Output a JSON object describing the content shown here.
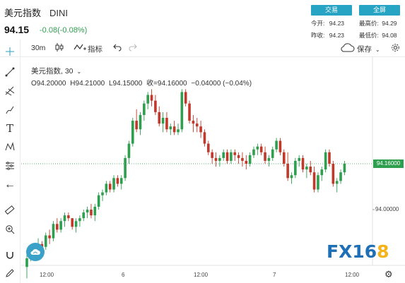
{
  "header": {
    "name": "美元指数",
    "code": "DINI",
    "price": "94.15",
    "change": "-0.08(-0.08%)",
    "trade_btn": "交易",
    "full_btn": "全屏"
  },
  "quote": {
    "open_label": "今开:",
    "open": "94.23",
    "high_label": "最高价:",
    "high": "94.29",
    "prev_label": "昨收:",
    "prev": "94.23",
    "low_label": "最低价:",
    "low": "94.08"
  },
  "toolbar": {
    "interval": "30m",
    "indicator": "指标",
    "save": "保存"
  },
  "legend": {
    "symbol": "美元指数, 30",
    "o": "O94.20000",
    "h": "H94.21000",
    "l": "L94.15000",
    "c": "收=94.16000",
    "chg": "−0.04000 (−0.04%)"
  },
  "right_axis": {
    "tag": "94.16000",
    "tick": "94.00000"
  },
  "x_axis": {
    "labels": [
      "12:00",
      "6",
      "12:00",
      "7",
      "12:00"
    ]
  },
  "logo": {
    "a": "FX16",
    "b": "8"
  },
  "colors": {
    "up": "#2e9e4f",
    "down": "#c0392b",
    "accent": "#27a3c4"
  },
  "chart_data": {
    "type": "candlestick",
    "last_price": 94.16,
    "y_tick": 94.0,
    "candles": [
      [
        93.8,
        93.85,
        93.76,
        93.83
      ],
      [
        93.83,
        93.86,
        93.82,
        93.85
      ],
      [
        93.85,
        93.87,
        93.83,
        93.86
      ],
      [
        93.86,
        93.9,
        93.84,
        93.88
      ],
      [
        93.88,
        93.89,
        93.86,
        93.87
      ],
      [
        93.87,
        93.92,
        93.86,
        93.91
      ],
      [
        93.91,
        93.93,
        93.88,
        93.9
      ],
      [
        93.9,
        93.96,
        93.89,
        93.95
      ],
      [
        93.95,
        93.97,
        93.92,
        93.93
      ],
      [
        93.93,
        93.97,
        93.92,
        93.96
      ],
      [
        93.96,
        93.99,
        93.94,
        93.98
      ],
      [
        93.98,
        93.99,
        93.96,
        93.97
      ],
      [
        93.97,
        93.97,
        93.93,
        93.94
      ],
      [
        93.94,
        93.97,
        93.92,
        93.96
      ],
      [
        93.96,
        93.98,
        93.94,
        93.97
      ],
      [
        93.97,
        94.0,
        93.96,
        93.99
      ],
      [
        93.99,
        94.01,
        93.97,
        94.0
      ],
      [
        94.0,
        94.02,
        93.97,
        93.98
      ],
      [
        93.98,
        94.02,
        93.96,
        94.01
      ],
      [
        94.01,
        94.06,
        94.0,
        94.05
      ],
      [
        94.05,
        94.07,
        94.03,
        94.06
      ],
      [
        94.06,
        94.1,
        94.05,
        94.09
      ],
      [
        94.09,
        94.1,
        94.06,
        94.07
      ],
      [
        94.07,
        94.12,
        94.06,
        94.11
      ],
      [
        94.11,
        94.12,
        94.08,
        94.09
      ],
      [
        94.09,
        94.12,
        94.07,
        94.11
      ],
      [
        94.11,
        94.19,
        94.1,
        94.18
      ],
      [
        94.18,
        94.24,
        94.16,
        94.23
      ],
      [
        94.23,
        94.32,
        94.22,
        94.31
      ],
      [
        94.31,
        94.35,
        94.27,
        94.28
      ],
      [
        94.28,
        94.34,
        94.26,
        94.33
      ],
      [
        94.33,
        94.38,
        94.31,
        94.37
      ],
      [
        94.37,
        94.41,
        94.35,
        94.4
      ],
      [
        94.4,
        94.42,
        94.36,
        94.38
      ],
      [
        94.38,
        94.4,
        94.33,
        94.34
      ],
      [
        94.34,
        94.36,
        94.29,
        94.3
      ],
      [
        94.3,
        94.34,
        94.27,
        94.32
      ],
      [
        94.32,
        94.34,
        94.27,
        94.28
      ],
      [
        94.28,
        94.3,
        94.26,
        94.29
      ],
      [
        94.29,
        94.31,
        94.26,
        94.27
      ],
      [
        94.27,
        94.3,
        94.26,
        94.28
      ],
      [
        94.28,
        94.42,
        94.27,
        94.41
      ],
      [
        94.41,
        94.42,
        94.36,
        94.37
      ],
      [
        94.37,
        94.38,
        94.3,
        94.31
      ],
      [
        94.31,
        94.33,
        94.27,
        94.3
      ],
      [
        94.3,
        94.32,
        94.27,
        94.29
      ],
      [
        94.29,
        94.31,
        94.25,
        94.27
      ],
      [
        94.27,
        94.28,
        94.22,
        94.23
      ],
      [
        94.23,
        94.24,
        94.19,
        94.2
      ],
      [
        94.2,
        94.21,
        94.16,
        94.18
      ],
      [
        94.18,
        94.2,
        94.15,
        94.17
      ],
      [
        94.17,
        94.19,
        94.15,
        94.18
      ],
      [
        94.18,
        94.21,
        94.17,
        94.2
      ],
      [
        94.2,
        94.21,
        94.16,
        94.17
      ],
      [
        94.17,
        94.21,
        94.16,
        94.2
      ],
      [
        94.2,
        94.21,
        94.17,
        94.19
      ],
      [
        94.19,
        94.2,
        94.16,
        94.18
      ],
      [
        94.18,
        94.2,
        94.15,
        94.17
      ],
      [
        94.17,
        94.19,
        94.14,
        94.16
      ],
      [
        94.16,
        94.2,
        94.15,
        94.19
      ],
      [
        94.19,
        94.22,
        94.18,
        94.21
      ],
      [
        94.21,
        94.23,
        94.19,
        94.22
      ],
      [
        94.22,
        94.23,
        94.19,
        94.2
      ],
      [
        94.2,
        94.22,
        94.16,
        94.17
      ],
      [
        94.17,
        94.19,
        94.15,
        94.18
      ],
      [
        94.18,
        94.22,
        94.17,
        94.21
      ],
      [
        94.21,
        94.25,
        94.2,
        94.24
      ],
      [
        94.24,
        94.25,
        94.19,
        94.2
      ],
      [
        94.2,
        94.21,
        94.15,
        94.16
      ],
      [
        94.16,
        94.2,
        94.1,
        94.11
      ],
      [
        94.11,
        94.13,
        94.09,
        94.12
      ],
      [
        94.12,
        94.18,
        94.11,
        94.17
      ],
      [
        94.17,
        94.19,
        94.15,
        94.18
      ],
      [
        94.18,
        94.19,
        94.13,
        94.14
      ],
      [
        94.14,
        94.16,
        94.11,
        94.15
      ],
      [
        94.15,
        94.17,
        94.12,
        94.13
      ],
      [
        94.13,
        94.15,
        94.06,
        94.07
      ],
      [
        94.07,
        94.13,
        94.06,
        94.12
      ],
      [
        94.12,
        94.15,
        94.1,
        94.14
      ],
      [
        94.14,
        94.21,
        94.13,
        94.2
      ],
      [
        94.2,
        94.21,
        94.15,
        94.16
      ],
      [
        94.16,
        94.17,
        94.08,
        94.09
      ],
      [
        94.09,
        94.11,
        94.06,
        94.1
      ],
      [
        94.1,
        94.14,
        94.09,
        94.13
      ],
      [
        94.13,
        94.17,
        94.12,
        94.16
      ]
    ]
  }
}
